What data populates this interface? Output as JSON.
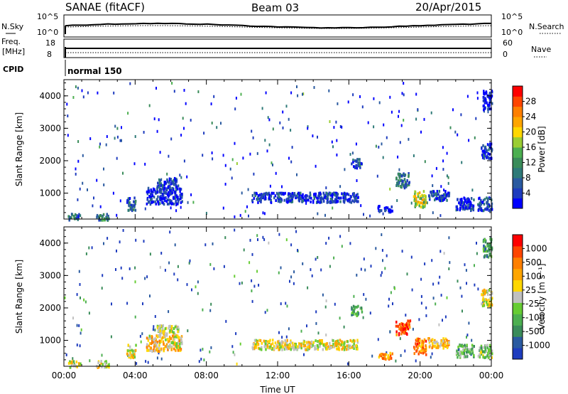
{
  "header": {
    "station": "SANAE (fitACF)",
    "beam": "Beam 03",
    "date": "20/Apr/2015"
  },
  "strips": {
    "nsky_label": "N.Sky",
    "nsearch_label": "N.Search",
    "nsky_ticks": [
      "10^5",
      "10^0"
    ],
    "nsearch_ticks": [
      "10^5",
      "10^0"
    ],
    "freq_label": "Freq.",
    "freq_unit": "[MHz]",
    "freq_ticks": [
      "18",
      "8"
    ],
    "nave_ticks": [
      "60",
      "0"
    ],
    "nave_label": "Nave",
    "cpid_label": "CPID",
    "cpid_value": "normal 150"
  },
  "chart_data": [
    {
      "type": "heatmap",
      "panel": "power",
      "ylabel": "Slant Range [km]",
      "x_range_hours": [
        0,
        24
      ],
      "y_range_km": [
        200,
        4500
      ],
      "y_ticks": [
        "4000",
        "3000",
        "2000",
        "1000"
      ],
      "colorbar": {
        "label": "Power [dB]",
        "ticks": [
          "28",
          "24",
          "20",
          "16",
          "12",
          "8",
          "4"
        ],
        "colors": [
          "#0000ff",
          "#1e3cbe",
          "#2a5aa0",
          "#2e7a78",
          "#3a8c5a",
          "#4caf50",
          "#9acd32",
          "#ffd700",
          "#ffa500",
          "#ff7f00",
          "#ff4500",
          "#ff0000"
        ]
      },
      "clusters": [
        {
          "t": [
            0.2,
            0.9
          ],
          "r": [
            200,
            400
          ],
          "level": 0.25
        },
        {
          "t": [
            1.8,
            2.5
          ],
          "r": [
            200,
            400
          ],
          "level": 0.3
        },
        {
          "t": [
            3.5,
            4.0
          ],
          "r": [
            500,
            900
          ],
          "level": 0.2
        },
        {
          "t": [
            4.6,
            6.6
          ],
          "r": [
            700,
            1200
          ],
          "level": 0.1
        },
        {
          "t": [
            5.2,
            6.4
          ],
          "r": [
            1200,
            1500
          ],
          "level": 0.15
        },
        {
          "t": [
            10.5,
            16.5
          ],
          "r": [
            750,
            1050
          ],
          "level": 0.12
        },
        {
          "t": [
            16.1,
            16.7
          ],
          "r": [
            1800,
            2100
          ],
          "level": 0.18
        },
        {
          "t": [
            17.6,
            18.4
          ],
          "r": [
            450,
            650
          ],
          "level": 0.05
        },
        {
          "t": [
            18.6,
            19.4
          ],
          "r": [
            1200,
            1650
          ],
          "level": 0.25
        },
        {
          "t": [
            19.6,
            20.3
          ],
          "r": [
            600,
            1100
          ],
          "level": 0.55
        },
        {
          "t": [
            20.4,
            21.6
          ],
          "r": [
            800,
            1100
          ],
          "level": 0.15
        },
        {
          "t": [
            22.0,
            23.0
          ],
          "r": [
            500,
            900
          ],
          "level": 0.1
        },
        {
          "t": [
            23.2,
            24.0
          ],
          "r": [
            500,
            900
          ],
          "level": 0.15
        },
        {
          "t": [
            23.4,
            24.0
          ],
          "r": [
            2100,
            2600
          ],
          "level": 0.1
        },
        {
          "t": [
            23.5,
            24.0
          ],
          "r": [
            3600,
            4200
          ],
          "level": 0.05
        }
      ]
    },
    {
      "type": "heatmap",
      "panel": "velocity",
      "ylabel": "Slant Range [km]",
      "x_range_hours": [
        0,
        24
      ],
      "y_range_km": [
        200,
        4500
      ],
      "y_ticks": [
        "4000",
        "3000",
        "2000",
        "1000"
      ],
      "xlabel": "Time UT",
      "x_ticks": [
        "00:00",
        "04:00",
        "08:00",
        "12:00",
        "16:00",
        "20:00",
        "00:00"
      ],
      "colorbar": {
        "label": "Velocity [m s⁻¹]",
        "ticks": [
          "1000",
          "500",
          "100",
          "25",
          "-25",
          "-100",
          "-500",
          "-1000"
        ],
        "colors": [
          "#1e3cbe",
          "#2a5aa0",
          "#3a8c5a",
          "#4caf50",
          "#66cc33",
          "#c0c0c0",
          "#ffd700",
          "#ffa500",
          "#ff7f00",
          "#ff4500",
          "#ff0000"
        ]
      },
      "clusters": [
        {
          "t": [
            0.2,
            0.9
          ],
          "r": [
            200,
            400
          ],
          "level": 0.5
        },
        {
          "t": [
            1.8,
            2.5
          ],
          "r": [
            200,
            400
          ],
          "level": 0.5
        },
        {
          "t": [
            3.5,
            4.0
          ],
          "r": [
            500,
            900
          ],
          "level": 0.55
        },
        {
          "t": [
            4.6,
            6.6
          ],
          "r": [
            700,
            1200
          ],
          "level": 0.6
        },
        {
          "t": [
            5.2,
            6.4
          ],
          "r": [
            1200,
            1500
          ],
          "level": 0.5
        },
        {
          "t": [
            10.5,
            16.5
          ],
          "r": [
            750,
            1050
          ],
          "level": 0.55
        },
        {
          "t": [
            16.1,
            16.7
          ],
          "r": [
            1800,
            2100
          ],
          "level": 0.3
        },
        {
          "t": [
            17.6,
            18.4
          ],
          "r": [
            450,
            650
          ],
          "level": 0.7
        },
        {
          "t": [
            18.6,
            19.4
          ],
          "r": [
            1200,
            1650
          ],
          "level": 0.85
        },
        {
          "t": [
            19.6,
            20.3
          ],
          "r": [
            600,
            1100
          ],
          "level": 0.75
        },
        {
          "t": [
            20.4,
            21.6
          ],
          "r": [
            800,
            1100
          ],
          "level": 0.65
        },
        {
          "t": [
            22.0,
            23.0
          ],
          "r": [
            500,
            900
          ],
          "level": 0.35
        },
        {
          "t": [
            23.2,
            24.0
          ],
          "r": [
            500,
            900
          ],
          "level": 0.4
        },
        {
          "t": [
            23.4,
            24.0
          ],
          "r": [
            2100,
            2600
          ],
          "level": 0.55
        },
        {
          "t": [
            23.5,
            24.0
          ],
          "r": [
            3600,
            4200
          ],
          "level": 0.3
        }
      ]
    }
  ]
}
